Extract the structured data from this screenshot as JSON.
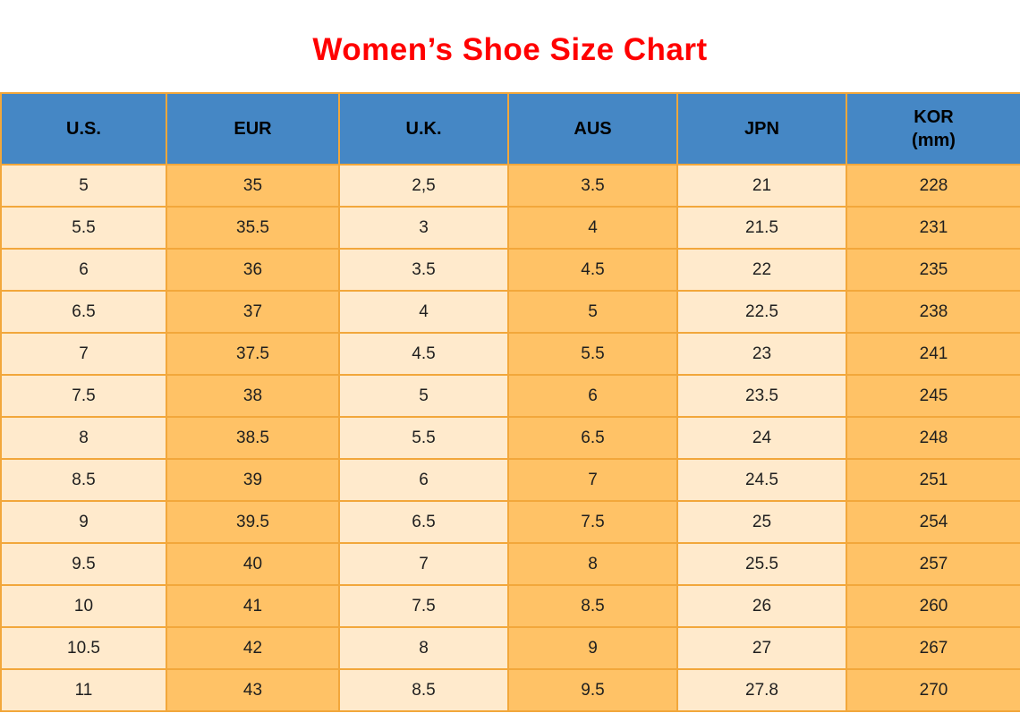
{
  "page": {
    "title": "Women’s Shoe Size Chart"
  },
  "colors": {
    "title": "#FF0000",
    "header_bg": "#4587C5",
    "header_text": "#000000",
    "cell_text": "#1F1F1F",
    "col_light_bg": "#FFEACC",
    "col_orange_bg": "#FFC266",
    "border": "#F2A73B",
    "page_bg": "#FFFFFF"
  },
  "chart_data": {
    "type": "table",
    "title": "Women’s Shoe Size Chart",
    "columns": [
      {
        "label": "U.S.",
        "sublabel": ""
      },
      {
        "label": "EUR",
        "sublabel": ""
      },
      {
        "label": "U.K.",
        "sublabel": ""
      },
      {
        "label": "AUS",
        "sublabel": ""
      },
      {
        "label": "JPN",
        "sublabel": ""
      },
      {
        "label": "KOR",
        "sublabel": "(mm)"
      }
    ],
    "rows": [
      [
        "5",
        "35",
        "2,5",
        "3.5",
        "21",
        "228"
      ],
      [
        "5.5",
        "35.5",
        "3",
        "4",
        "21.5",
        "231"
      ],
      [
        "6",
        "36",
        "3.5",
        "4.5",
        "22",
        "235"
      ],
      [
        "6.5",
        "37",
        "4",
        "5",
        "22.5",
        "238"
      ],
      [
        "7",
        "37.5",
        "4.5",
        "5.5",
        "23",
        "241"
      ],
      [
        "7.5",
        "38",
        "5",
        "6",
        "23.5",
        "245"
      ],
      [
        "8",
        "38.5",
        "5.5",
        "6.5",
        "24",
        "248"
      ],
      [
        "8.5",
        "39",
        "6",
        "7",
        "24.5",
        "251"
      ],
      [
        "9",
        "39.5",
        "6.5",
        "7.5",
        "25",
        "254"
      ],
      [
        "9.5",
        "40",
        "7",
        "8",
        "25.5",
        "257"
      ],
      [
        "10",
        "41",
        "7.5",
        "8.5",
        "26",
        "260"
      ],
      [
        "10.5",
        "42",
        "8",
        "9",
        "27",
        "267"
      ],
      [
        "11",
        "43",
        "8.5",
        "9.5",
        "27.8",
        "270"
      ]
    ]
  }
}
